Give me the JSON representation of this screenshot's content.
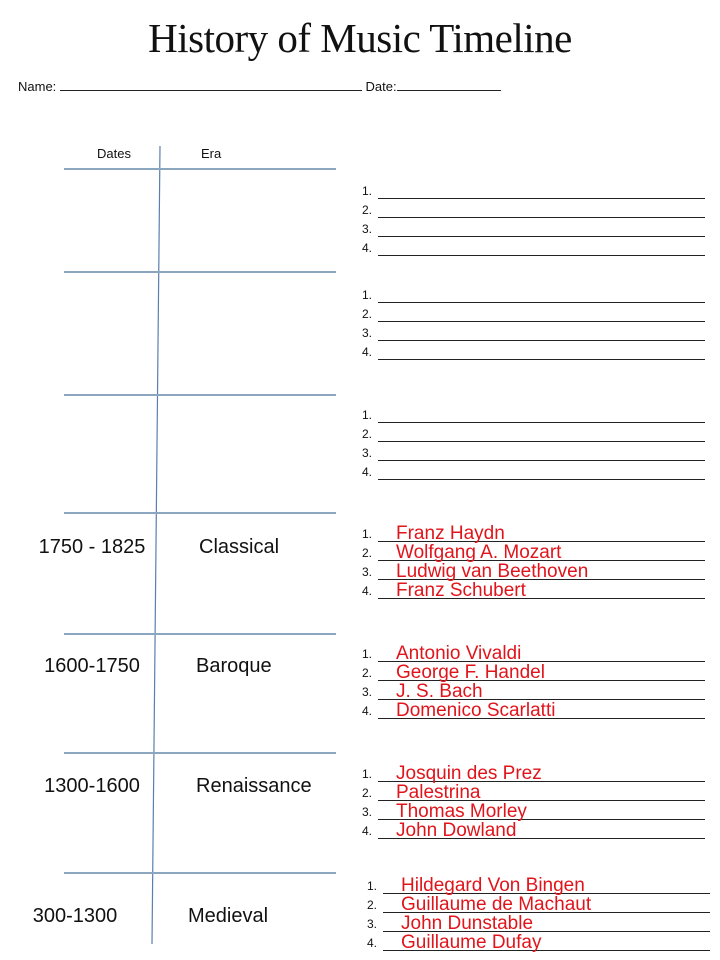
{
  "title": "History of Music Timeline",
  "name_label": "Name:",
  "date_label": "Date:",
  "table_headers": {
    "dates": "Dates",
    "era": "Era"
  },
  "eras": [
    {
      "dates": "",
      "era": "",
      "answers": [
        "",
        "",
        "",
        ""
      ]
    },
    {
      "dates": "",
      "era": "",
      "answers": [
        "",
        "",
        "",
        ""
      ]
    },
    {
      "dates": "",
      "era": "",
      "answers": [
        "",
        "",
        "",
        ""
      ]
    },
    {
      "dates": "1750 - 1825",
      "era": "Classical",
      "answers": [
        "Franz Haydn",
        "Wolfgang A. Mozart",
        "Ludwig van Beethoven",
        "Franz Schubert"
      ]
    },
    {
      "dates": "1600-1750",
      "era": "Baroque",
      "answers": [
        "Antonio Vivaldi",
        "George F. Handel",
        "J. S. Bach",
        "Domenico Scarlatti"
      ]
    },
    {
      "dates": "1300-1600",
      "era": "Renaissance",
      "answers": [
        "Josquin  des Prez",
        "Palestrina",
        "Thomas Morley",
        "John Dowland"
      ]
    },
    {
      "dates": "300-1300",
      "era": "Medieval",
      "answers": [
        "Hildegard Von Bingen",
        "Guillaume de Machaut",
        "John Dunstable",
        "Guillaume Dufay"
      ]
    }
  ],
  "answer_color": "#e0141b",
  "rule_color": "#8ba6bf"
}
